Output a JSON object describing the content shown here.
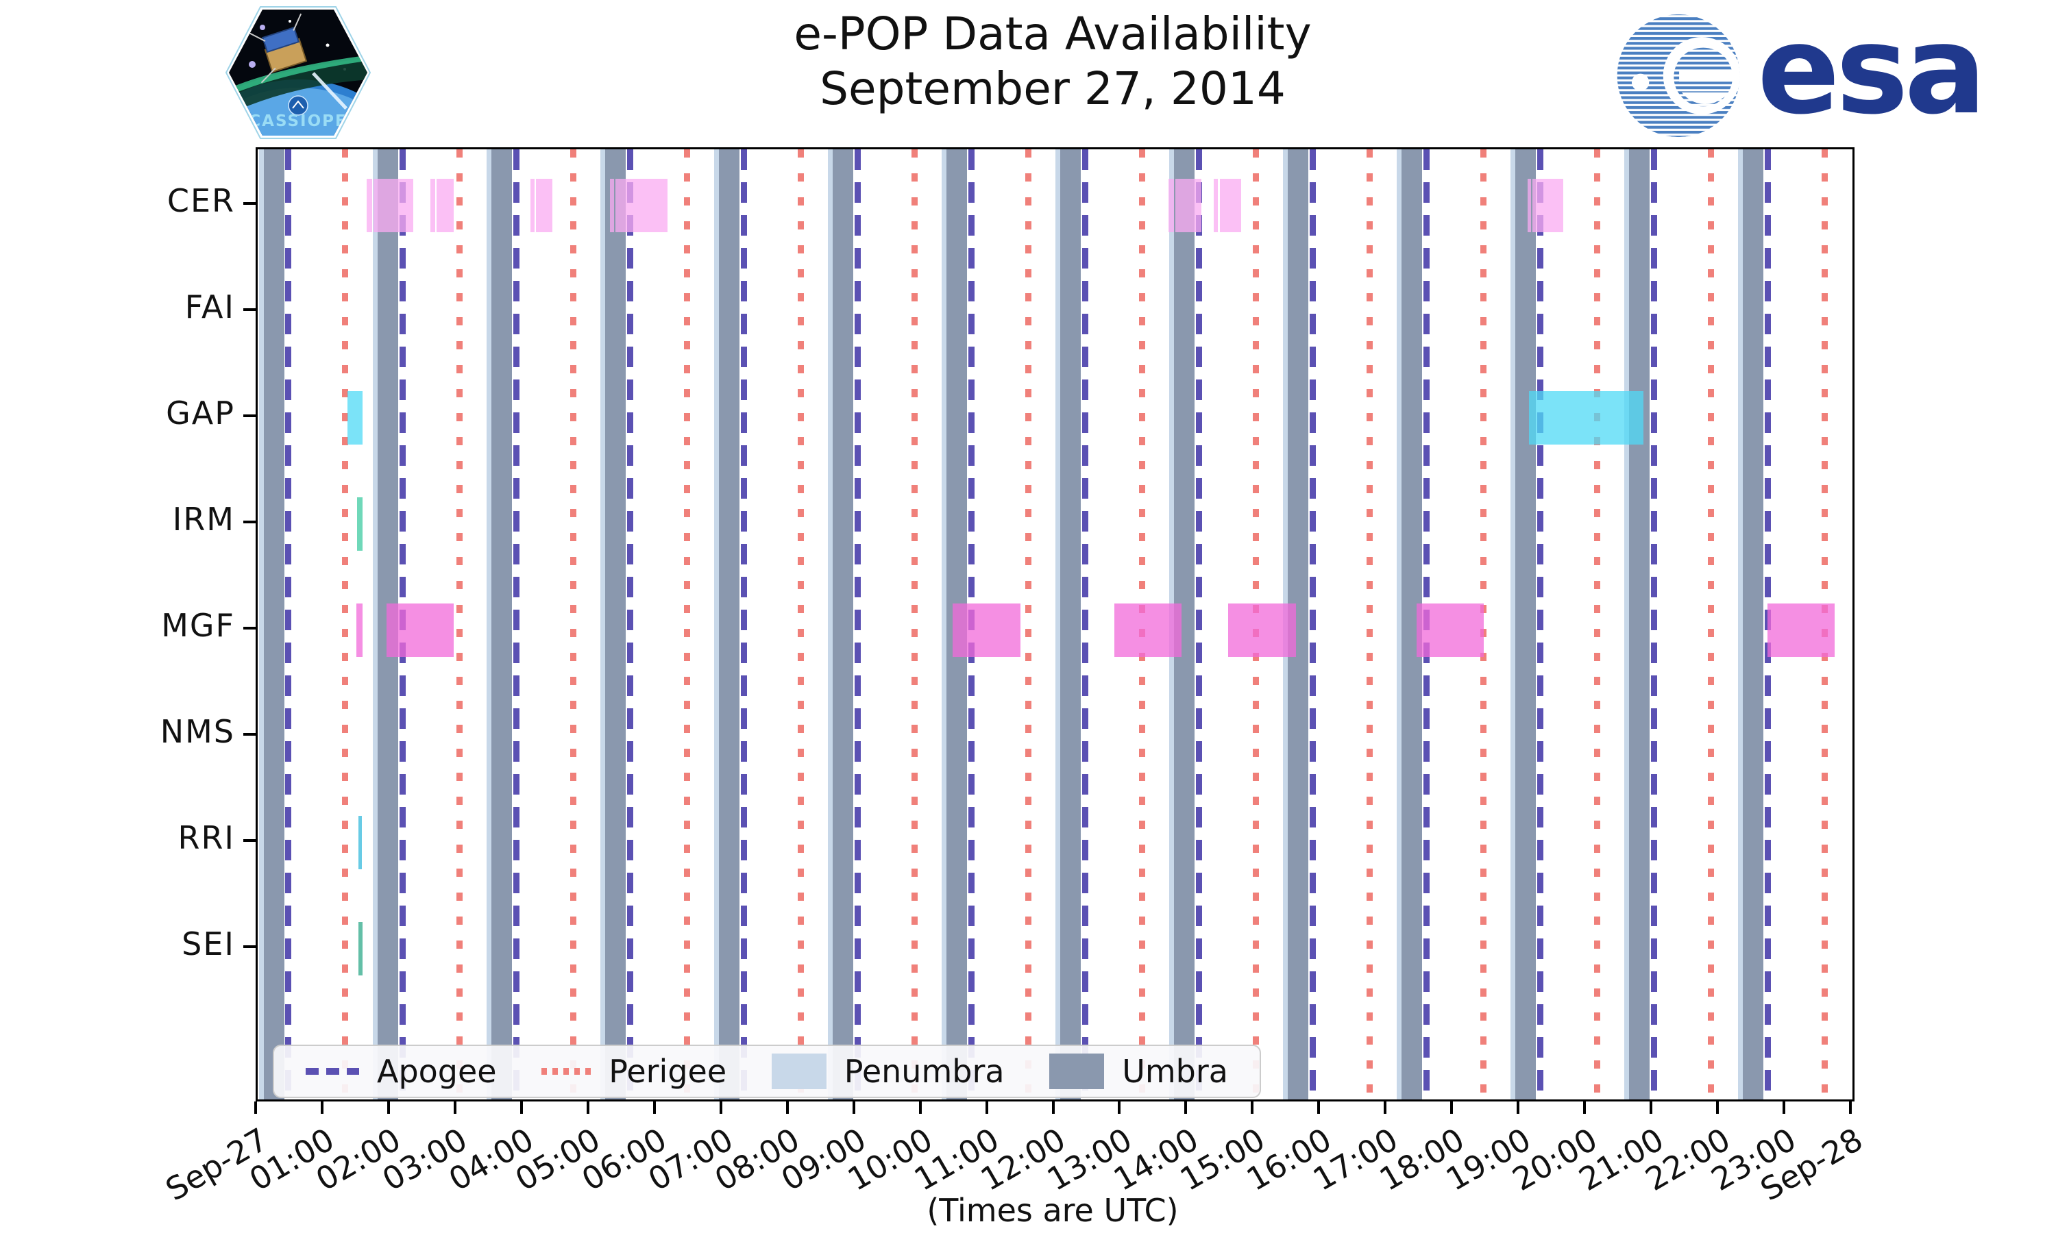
{
  "header": {
    "title_line1": "e-POP Data Availability",
    "title_line2": "September 27, 2014",
    "patch_text": "CASSIOPE",
    "esa_wordmark": "esa"
  },
  "axes": {
    "xlabel": "(Times are UTC)",
    "x_tick_labels": [
      "Sep-27",
      "01:00",
      "02:00",
      "03:00",
      "04:00",
      "05:00",
      "06:00",
      "07:00",
      "08:00",
      "09:00",
      "10:00",
      "11:00",
      "12:00",
      "13:00",
      "14:00",
      "15:00",
      "16:00",
      "17:00",
      "18:00",
      "19:00",
      "20:00",
      "21:00",
      "22:00",
      "23:00",
      "Sep-28"
    ],
    "y_tick_labels": [
      "CER",
      "FAI",
      "GAP",
      "IRM",
      "MGF",
      "NMS",
      "RRI",
      "SEI"
    ]
  },
  "legend": [
    {
      "label": "Apogee",
      "type": "dashed-line",
      "color": "#5B51B3"
    },
    {
      "label": "Perigee",
      "type": "dotted-line",
      "color": "#F0807A"
    },
    {
      "label": "Penumbra",
      "type": "patch",
      "color": "#C8D8E9"
    },
    {
      "label": "Umbra",
      "type": "patch",
      "color": "#8A98AE"
    }
  ],
  "chart_data": {
    "type": "timeline",
    "title": "e-POP Data Availability September 27, 2014",
    "x_axis": {
      "start_label": "Sep-27",
      "end_label": "Sep-28",
      "range_hours": [
        0,
        24
      ],
      "units": "UTC hours"
    },
    "instruments": [
      "CER",
      "FAI",
      "GAP",
      "IRM",
      "MGF",
      "NMS",
      "RRI",
      "SEI"
    ],
    "colors": {
      "CER": "#F9ABF2",
      "GAP": "#4FD9F6",
      "IRM": "#3FCBA1",
      "MGF": "#F169DA",
      "RRI": "#35B9DC",
      "SEI": "#2FAA8A",
      "umbra": "#8A98AE",
      "penumbra": "#C8D8E9",
      "apogee": "#5B51B3",
      "perigee": "#F0807A"
    },
    "bar_alpha": 0.75,
    "bars": {
      "CER": [
        [
          1.64,
          1.722
        ],
        [
          1.743,
          2.341
        ],
        [
          2.599,
          2.671
        ],
        [
          2.692,
          2.95
        ],
        [
          4.105,
          4.167
        ],
        [
          4.187,
          4.435
        ],
        [
          5.301,
          5.363
        ],
        [
          5.384,
          6.168
        ],
        [
          13.707,
          13.79
        ],
        [
          13.81,
          14.202
        ],
        [
          14.388,
          14.45
        ],
        [
          14.481,
          14.801
        ],
        [
          19.112,
          19.163
        ],
        [
          19.184,
          19.648
        ]
      ],
      "FAI": [],
      "GAP": [
        [
          1.351,
          1.578
        ],
        [
          19.132,
          20.855
        ]
      ],
      "IRM": [
        [
          1.496,
          1.578
        ]
      ],
      "MGF": [
        [
          1.485,
          1.578
        ],
        [
          1.939,
          2.95
        ],
        [
          10.458,
          11.479
        ],
        [
          12.892,
          13.903
        ],
        [
          14.604,
          15.625
        ],
        [
          17.438,
          18.449
        ],
        [
          22.719,
          23.73
        ]
      ],
      "NMS": [],
      "RRI": [
        [
          1.516,
          1.568
        ]
      ],
      "SEI": [
        [
          1.516,
          1.578
        ]
      ]
    },
    "apogee_hours": [
      0.464,
      2.177,
      3.889,
      5.602,
      7.314,
      9.027,
      10.739,
      12.452,
      14.164,
      15.877,
      17.589,
      19.302,
      21.014,
      22.727
    ],
    "perigee_hours": [
      1.32,
      3.033,
      4.745,
      6.458,
      8.17,
      9.883,
      11.595,
      13.308,
      15.02,
      16.733,
      18.445,
      20.158,
      21.87,
      23.583
    ],
    "umbra_hours": [
      [
        0.089,
        0.399
      ],
      [
        1.802,
        2.112
      ],
      [
        3.514,
        3.824
      ],
      [
        5.227,
        5.537
      ],
      [
        6.939,
        7.249
      ],
      [
        8.652,
        8.962
      ],
      [
        10.364,
        10.674
      ],
      [
        12.077,
        12.387
      ],
      [
        13.789,
        14.099
      ],
      [
        15.502,
        15.812
      ],
      [
        17.214,
        17.524
      ],
      [
        18.927,
        19.237
      ],
      [
        20.639,
        20.949
      ],
      [
        22.352,
        22.662
      ]
    ],
    "penumbra_width_hours": 0.07,
    "grid": false,
    "legend_position": "lower left inside plot"
  }
}
